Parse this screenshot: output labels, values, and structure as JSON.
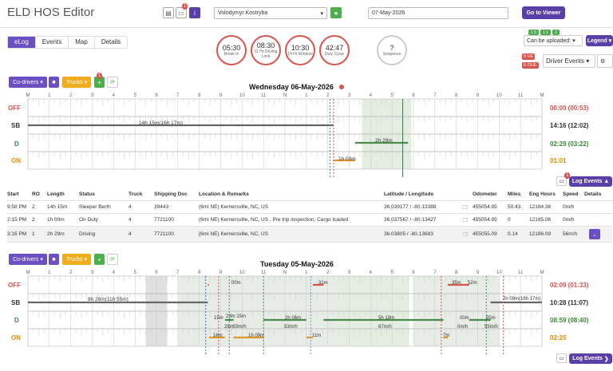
{
  "app": {
    "title": "ELD HOS Editor"
  },
  "header": {
    "driver": "Volodymyr Kostryba",
    "date": "07-May-2026",
    "go_to_viewer": "Go to Viewer",
    "notes_badge": "1",
    "info_icon": "i"
  },
  "tabs": [
    "eLog",
    "Events",
    "Map",
    "Details"
  ],
  "gauges": [
    {
      "value": "05:30",
      "label": "Break In"
    },
    {
      "value": "08:30",
      "label": "11 Hr Driving Limit"
    },
    {
      "value": "10:30",
      "label": "14 Hr Window"
    },
    {
      "value": "42:47",
      "label": "Duty Cycle"
    },
    {
      "value": "?",
      "label": "Sequence"
    }
  ],
  "right_controls": {
    "can_upload": "Can be uploaded:",
    "legend": "Legend",
    "driver_events": "Driver Events",
    "ue_badge": "6 UE",
    "oue_badge": "6 OUE",
    "mini_badges": [
      "1 5",
      "1 1",
      "2"
    ]
  },
  "toolbar": {
    "codrivers": "Co-drivers",
    "trucks": "Trucks",
    "trucks_badge": "1"
  },
  "grid_hours": [
    "M",
    "1",
    "2",
    "3",
    "4",
    "5",
    "6",
    "7",
    "8",
    "9",
    "10",
    "11",
    "N",
    "1",
    "2",
    "3",
    "4",
    "5",
    "6",
    "7",
    "8",
    "9",
    "10",
    "11",
    "M"
  ],
  "status_labels": [
    "OFF",
    "SB",
    "D",
    "ON"
  ],
  "day1": {
    "title": "Wednesday 06-May-2026",
    "totals": [
      "00:00 (00:53)",
      "14:16 (12:02)",
      "02:29 (03:22)",
      "01:01"
    ],
    "segments": [
      "14h 15m(16h 17m)",
      "1h 00m",
      "2h 29m"
    ],
    "log_events": "Log Events",
    "log_badge": "1"
  },
  "table": {
    "headers": [
      "Start",
      "RO",
      "Length",
      "Status",
      "Truck",
      "Shipping Doc",
      "Location & Remarks",
      "Latitude / Longitude",
      "Odometer",
      "Miles",
      "Eng Hours",
      "Speed",
      "Details"
    ],
    "rows": [
      {
        "start": "9:58 PM",
        "ro": "2",
        "length": "14h 15m",
        "status": "Sleeper Berth",
        "truck": "4",
        "doc": "39443",
        "loc": "(6mi NE) Kernersville, NC, US",
        "latlng": "36.039177 / -80.13388",
        "odo": "455054.95",
        "miles": "50.43",
        "eng": "12184.38",
        "speed": "0m/h"
      },
      {
        "start": "2:15 PM",
        "ro": "2",
        "length": "1h 00m",
        "status": "On Duty",
        "truck": "4",
        "doc": "7721100",
        "loc": "(6mi NE) Kernersville, NC, US , Pre trip inspection, Cargo loaded",
        "latlng": "36.037567 / -80.13427",
        "odo": "455054.95",
        "miles": "0",
        "eng": "12185.08",
        "speed": "0m/h"
      },
      {
        "start": "3:16 PM",
        "ro": "1",
        "length": "2h 29m",
        "status": "Driving",
        "truck": "4",
        "doc": "7721100",
        "loc": "(6mi NE) Kernersville, NC, US",
        "latlng": "36.03805 / -80.13683",
        "odo": "455055.09",
        "miles": "0.14",
        "eng": "12186.09",
        "speed": "56m/h"
      }
    ]
  },
  "day2": {
    "title": "Tuesday 05-May-2026",
    "totals": [
      "02:09 (01:33)",
      "10:28 (11:07)",
      "08:59 (08:40)",
      "02:25"
    ],
    "segments": [
      "8h 26m(11h 55m)",
      "00m",
      "23m 15m",
      "16m",
      "28m",
      "1h 09m",
      "2h 06m",
      "53m/h",
      "31m",
      "11m",
      "5h 19m",
      "67m/h",
      "35m",
      "52m",
      "7m",
      "00m",
      "0m/h",
      "55m",
      "55m/h",
      "2h 09m(16h 17m)",
      "15m",
      "59m/h"
    ],
    "log_events": "Log Events"
  }
}
